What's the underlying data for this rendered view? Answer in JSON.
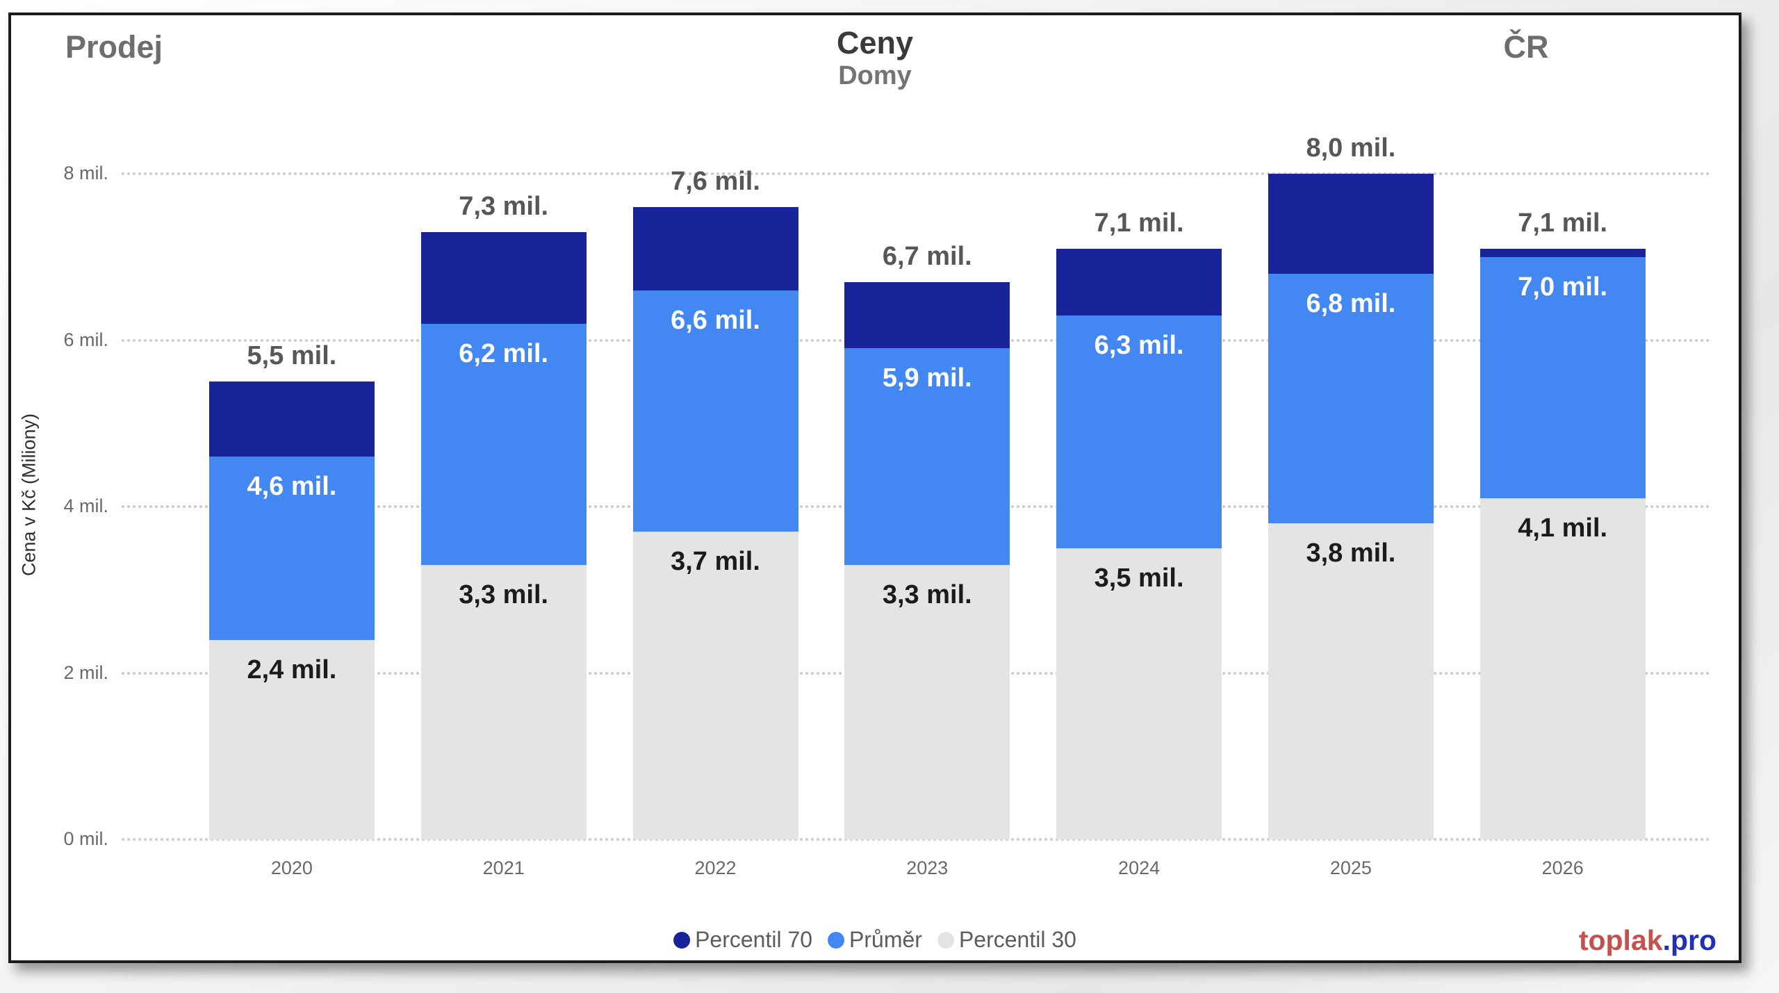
{
  "header": {
    "context_left": "Prodej",
    "title": "Ceny",
    "subtitle": "Domy",
    "context_right": "ČR"
  },
  "chart_data": {
    "type": "bar",
    "mode": "overlay-percentile-columns",
    "title": "Ceny",
    "subtitle": "Domy",
    "xlabel": "",
    "ylabel": "Cena v Kč (Miliony)",
    "ylim": [
      0,
      8
    ],
    "grid": "dotted-horizontal",
    "legend_position": "bottom",
    "yticks": [
      {
        "value": 0,
        "label": "0 mil."
      },
      {
        "value": 2,
        "label": "2 mil."
      },
      {
        "value": 4,
        "label": "4 mil."
      },
      {
        "value": 6,
        "label": "6 mil."
      },
      {
        "value": 8,
        "label": "8 mil."
      }
    ],
    "categories": [
      "2020",
      "2021",
      "2022",
      "2023",
      "2024",
      "2025",
      "2026"
    ],
    "series": [
      {
        "name": "Percentil 70",
        "color": "#1a249a",
        "values": [
          5.5,
          7.3,
          7.6,
          6.7,
          7.1,
          8.0,
          7.1
        ],
        "labels": [
          "5,5 mil.",
          "7,3 mil.",
          "7,6 mil.",
          "6,7 mil.",
          "7,1 mil.",
          "8,0 mil.",
          "7,1 mil."
        ],
        "label_color": "#575757",
        "label_position": "above-bar"
      },
      {
        "name": "Průměr",
        "color": "#4387f3",
        "values": [
          4.6,
          6.2,
          6.6,
          5.9,
          6.3,
          6.8,
          7.0
        ],
        "labels": [
          "4,6 mil.",
          "6,2 mil.",
          "6,6 mil.",
          "5,9 mil.",
          "6,3 mil.",
          "6,8 mil.",
          "7,0 mil."
        ],
        "label_color": "#ffffff",
        "label_position": "inside-top"
      },
      {
        "name": "Percentil 30",
        "color": "#e4e4e4",
        "values": [
          2.4,
          3.3,
          3.7,
          3.3,
          3.5,
          3.8,
          4.1
        ],
        "labels": [
          "2,4 mil.",
          "3,3 mil.",
          "3,7 mil.",
          "3,3 mil.",
          "3,5 mil.",
          "3,8 mil.",
          "4,1 mil."
        ],
        "label_color": "#1b1b1b",
        "label_position": "inside-top"
      }
    ]
  },
  "footer": {
    "brand_primary": "toplak",
    "brand_secondary": ".pro"
  }
}
